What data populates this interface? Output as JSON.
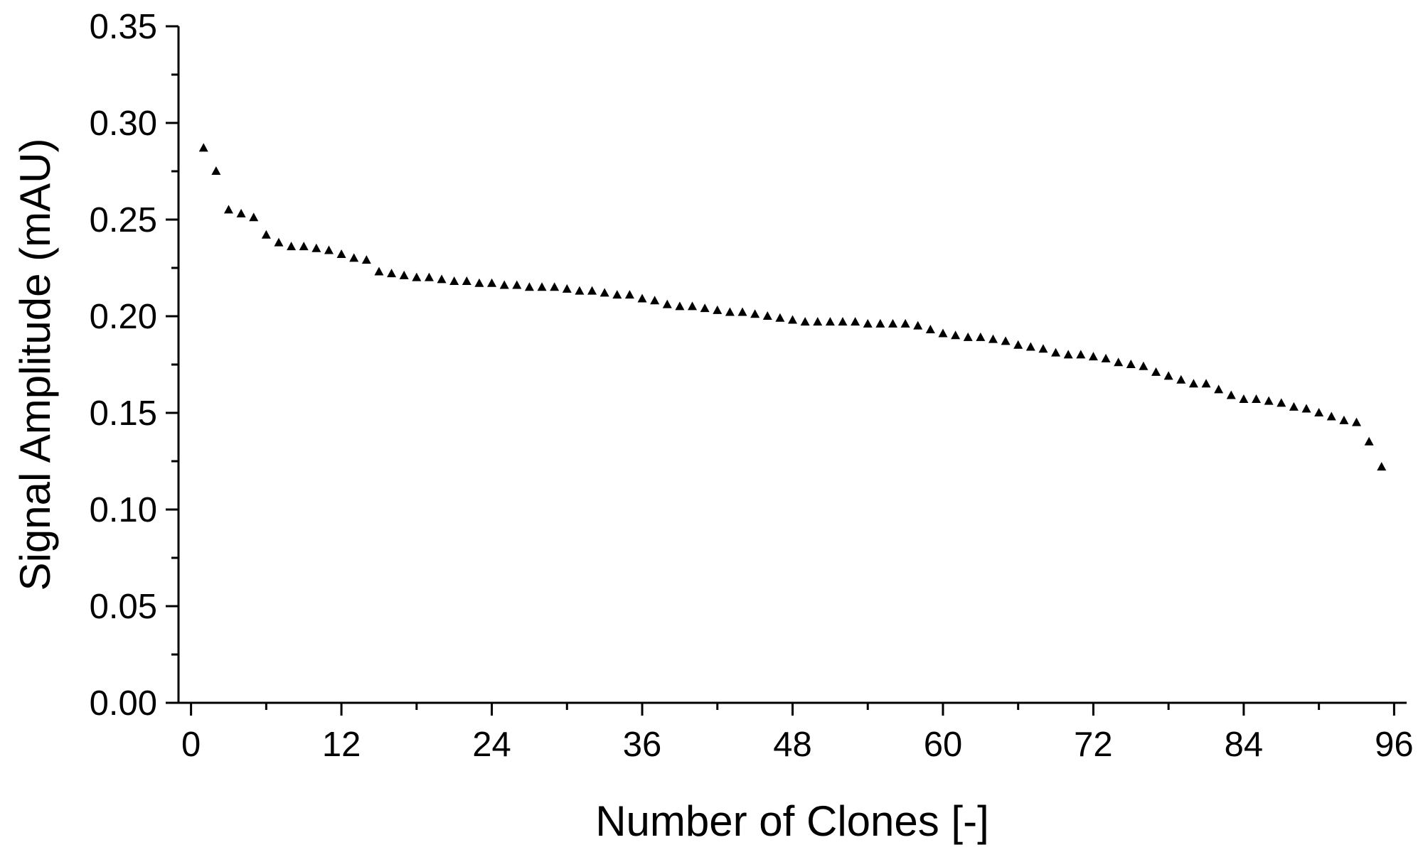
{
  "chart_data": {
    "type": "scatter",
    "x_label": "Number of Clones [-]",
    "y_label": "Signal Amplitude (mAU)",
    "marker": "triangle",
    "color": "#000000",
    "grid": false,
    "x": [
      1,
      2,
      3,
      4,
      5,
      6,
      7,
      8,
      9,
      10,
      11,
      12,
      13,
      14,
      15,
      16,
      17,
      18,
      19,
      20,
      21,
      22,
      23,
      24,
      25,
      26,
      27,
      28,
      29,
      30,
      31,
      32,
      33,
      34,
      35,
      36,
      37,
      38,
      39,
      40,
      41,
      42,
      43,
      44,
      45,
      46,
      47,
      48,
      49,
      50,
      51,
      52,
      53,
      54,
      55,
      56,
      57,
      58,
      59,
      60,
      61,
      62,
      63,
      64,
      65,
      66,
      67,
      68,
      69,
      70,
      71,
      72,
      73,
      74,
      75,
      76,
      77,
      78,
      79,
      80,
      81,
      82,
      83,
      84,
      85,
      86,
      87,
      88,
      89,
      90,
      91,
      92,
      93,
      94,
      95
    ],
    "values": [
      0.287,
      0.275,
      0.255,
      0.253,
      0.251,
      0.242,
      0.238,
      0.236,
      0.236,
      0.235,
      0.234,
      0.232,
      0.23,
      0.229,
      0.223,
      0.222,
      0.221,
      0.22,
      0.22,
      0.219,
      0.218,
      0.218,
      0.217,
      0.217,
      0.216,
      0.216,
      0.215,
      0.215,
      0.215,
      0.214,
      0.213,
      0.213,
      0.212,
      0.211,
      0.211,
      0.209,
      0.208,
      0.206,
      0.205,
      0.205,
      0.204,
      0.203,
      0.202,
      0.202,
      0.201,
      0.2,
      0.199,
      0.198,
      0.197,
      0.197,
      0.197,
      0.197,
      0.197,
      0.196,
      0.196,
      0.196,
      0.196,
      0.195,
      0.193,
      0.191,
      0.19,
      0.189,
      0.189,
      0.188,
      0.187,
      0.185,
      0.184,
      0.183,
      0.181,
      0.18,
      0.18,
      0.179,
      0.178,
      0.176,
      0.175,
      0.174,
      0.171,
      0.169,
      0.167,
      0.165,
      0.165,
      0.162,
      0.159,
      0.157,
      0.157,
      0.156,
      0.155,
      0.153,
      0.152,
      0.15,
      0.148,
      0.146,
      0.145,
      0.135,
      0.122
    ],
    "xlim": [
      -1,
      97
    ],
    "xticks": [
      0,
      12,
      24,
      36,
      48,
      60,
      72,
      84,
      96
    ],
    "ylim": [
      0,
      0.35
    ],
    "yticks": [
      {
        "value": 0,
        "label": "0.00"
      },
      {
        "value": 0.05,
        "label": "0.05"
      },
      {
        "value": 0.1,
        "label": "0.10"
      },
      {
        "value": 0.15,
        "label": "0.15"
      },
      {
        "value": 0.2,
        "label": "0.20"
      },
      {
        "value": 0.25,
        "label": "0.25"
      },
      {
        "value": 0.3,
        "label": "0.30"
      },
      {
        "value": 0.35,
        "label": "0.35"
      }
    ]
  }
}
